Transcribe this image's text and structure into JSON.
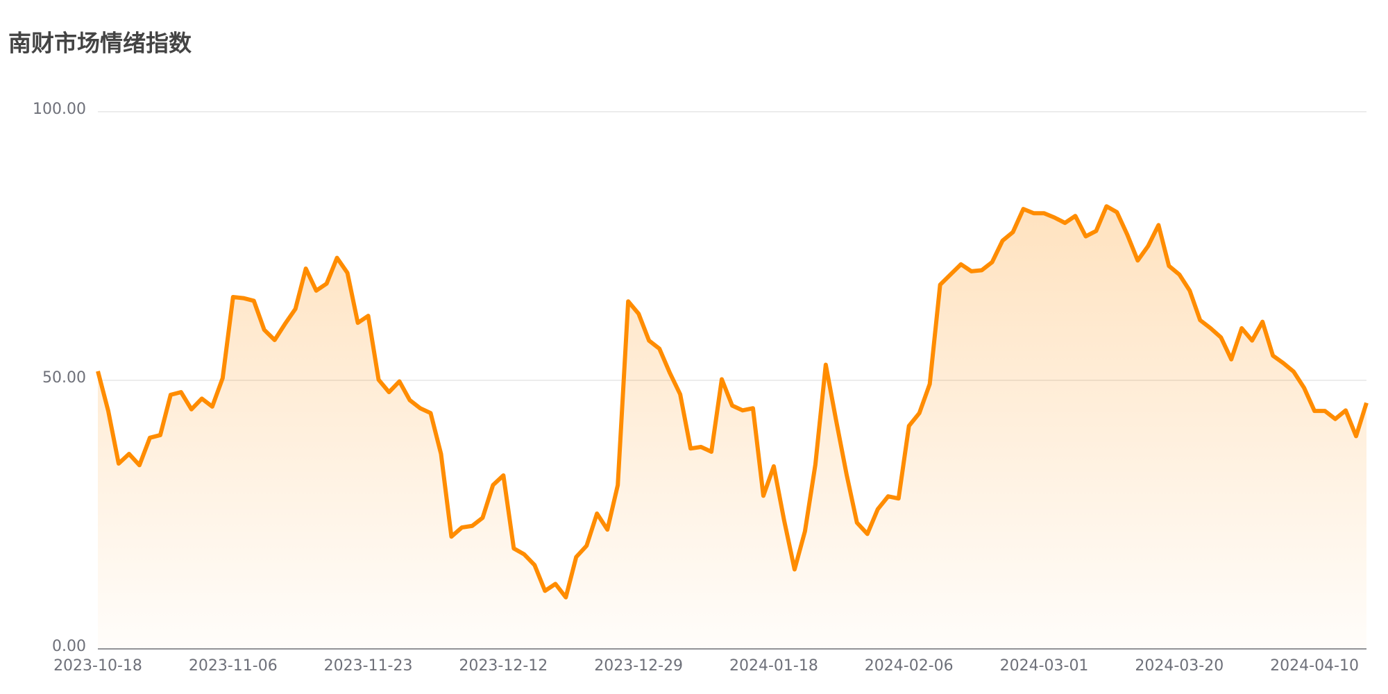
{
  "chart_data": {
    "type": "line",
    "title": "南财市场情绪指数",
    "categories": [
      "2023-10-18",
      null,
      null,
      null,
      null,
      null,
      null,
      null,
      null,
      null,
      null,
      null,
      null,
      "2023-11-06",
      null,
      null,
      null,
      null,
      null,
      null,
      null,
      null,
      null,
      null,
      null,
      null,
      "2023-11-23",
      null,
      null,
      null,
      null,
      null,
      null,
      null,
      null,
      null,
      null,
      null,
      null,
      "2023-12-12",
      null,
      null,
      null,
      null,
      null,
      null,
      null,
      null,
      null,
      null,
      null,
      null,
      "2023-12-29",
      null,
      null,
      null,
      null,
      null,
      null,
      null,
      null,
      null,
      null,
      null,
      null,
      "2024-01-18",
      null,
      null,
      null,
      null,
      null,
      null,
      null,
      null,
      null,
      null,
      null,
      null,
      "2024-02-06",
      null,
      null,
      null,
      null,
      null,
      null,
      null,
      null,
      null,
      null,
      null,
      null,
      "2024-03-01",
      null,
      null,
      null,
      null,
      null,
      null,
      null,
      null,
      null,
      null,
      null,
      null,
      "2024-03-20",
      null,
      null,
      null,
      null,
      null,
      null,
      null,
      null,
      null,
      null,
      null,
      null,
      "2024-04-10",
      null,
      null,
      null,
      null,
      null
    ],
    "values": [
      51.7,
      44.3,
      34.5,
      36.3,
      34.2,
      39.3,
      39.8,
      47.3,
      47.8,
      44.6,
      46.6,
      45.1,
      50.4,
      65.5,
      65.3,
      64.8,
      59.4,
      57.5,
      60.5,
      63.3,
      70.8,
      66.7,
      68.0,
      72.8,
      70.0,
      60.7,
      62.0,
      50.1,
      47.8,
      49.8,
      46.3,
      44.8,
      43.9,
      36.3,
      20.9,
      22.6,
      22.9,
      24.4,
      30.5,
      32.3,
      18.7,
      17.6,
      15.6,
      10.8,
      12.1,
      9.6,
      17.1,
      19.2,
      25.2,
      22.2,
      30.5,
      64.7,
      62.4,
      57.4,
      55.9,
      51.4,
      47.4,
      37.3,
      37.6,
      36.7,
      50.2,
      45.3,
      44.4,
      44.8,
      28.5,
      34.0,
      23.9,
      14.8,
      21.9,
      34.3,
      52.9,
      42.5,
      32.5,
      23.5,
      21.4,
      26.0,
      28.4,
      28.0,
      41.5,
      43.9,
      49.3,
      67.8,
      69.7,
      71.6,
      70.3,
      70.5,
      72.0,
      76.0,
      77.6,
      81.9,
      81.1,
      81.1,
      80.3,
      79.3,
      80.6,
      76.8,
      77.8,
      82.4,
      81.3,
      77.1,
      72.3,
      75.0,
      78.9,
      71.3,
      69.7,
      66.7,
      61.2,
      59.7,
      58.0,
      53.9,
      59.7,
      57.4,
      60.9,
      54.6,
      53.2,
      51.6,
      48.6,
      44.3,
      44.3,
      42.8,
      44.4,
      39.6,
      45.8
    ],
    "color": "#ff8c00",
    "ylim": [
      0,
      100
    ],
    "yticks": [
      {
        "value": 0,
        "label": "0.00"
      },
      {
        "value": 50,
        "label": "50.00"
      },
      {
        "value": 100,
        "label": "100.00"
      }
    ],
    "grid": true,
    "area": true
  }
}
